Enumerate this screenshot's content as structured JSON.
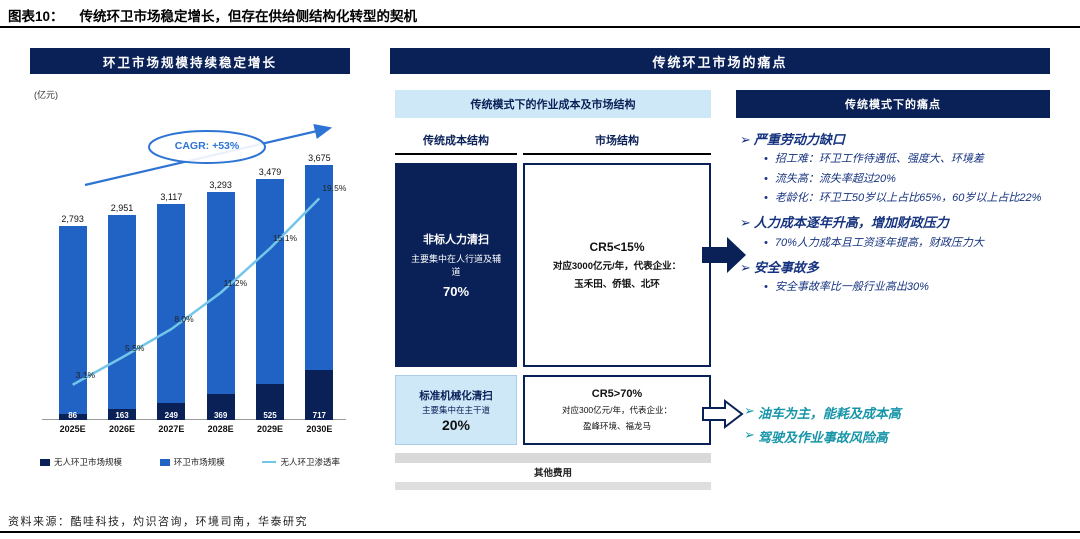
{
  "page": {
    "figure_label": "图表10：",
    "figure_title": "传统环卫市场稳定增长，但存在供给侧结构化转型的契机",
    "source": "资料来源：酷哇科技，灼识咨询，环境司南，华泰研究"
  },
  "colors": {
    "navy": "#0a2158",
    "bar_blue": "#2063c5",
    "line_blue": "#74c6e9",
    "light_blue_bg": "#cfe8f8",
    "trend_blue": "#2e74d4",
    "teal": "#1795a8",
    "gray_bar": "#d9d9d9",
    "text_navy": "#16337f"
  },
  "left_panel": {
    "header": "环卫市场规模持续稳定增长",
    "unit_label": "(亿元)",
    "cagr_label": "CAGR: +53%"
  },
  "chart_data": {
    "type": "bar",
    "categories": [
      "2025E",
      "2026E",
      "2027E",
      "2028E",
      "2029E",
      "2030E"
    ],
    "series": [
      {
        "name": "无人环卫市场规模",
        "type": "bar",
        "values": [
          86,
          163,
          249,
          369,
          525,
          717
        ],
        "color": "#0a2158"
      },
      {
        "name": "环卫市场规模",
        "type": "bar",
        "values": [
          2793,
          2951,
          3117,
          3293,
          3479,
          3675
        ],
        "color": "#2063c5"
      },
      {
        "name": "无人环卫渗透率",
        "type": "line",
        "unit": "%",
        "values": [
          3.1,
          5.5,
          8.0,
          11.2,
          15.1,
          19.5
        ],
        "color": "#74c6e9"
      }
    ],
    "title": "环卫市场规模持续稳定增长",
    "ylabel": "(亿元)",
    "y_max": 3675,
    "pct_axis_max": 22,
    "annotation": "CAGR: +53%",
    "legend_position": "bottom",
    "grid": false
  },
  "right_panel": {
    "header": "传统环卫市场的痛点",
    "cost_section": {
      "header": "传统模式下的作业成本及市场结构",
      "col1_header": "传统成本结构",
      "col2_header": "市场结构",
      "manual_box": {
        "title": "非标人力清扫",
        "subtitle": "主要集中在人行道及辅道",
        "share": "70%"
      },
      "manual_market": {
        "line1": "CR5<15%",
        "line2": "对应3000亿元/年，代表企业：",
        "line3": "玉禾田、侨银、北环"
      },
      "mech_box": {
        "title": "标准机械化清扫",
        "subtitle": "主要集中在主干道",
        "share": "20%"
      },
      "mech_market": {
        "line1": "CR5>70%",
        "line2": "对应300亿元/年，代表企业：",
        "line3": "盈峰环境、福龙马"
      },
      "other_label": "其他费用"
    },
    "pain_section": {
      "header": "传统模式下的痛点",
      "groups": [
        {
          "title": "严重劳动力缺口",
          "bullets": [
            "招工难：环卫工作待遇低、强度大、环境差",
            "流失高：流失率超过20%",
            "老龄化：环卫工50岁以上占比65%，60岁以上占比22%"
          ]
        },
        {
          "title": "人力成本逐年升高，增加财政压力",
          "bullets": [
            "70%人力成本且工资逐年提高，财政压力大"
          ]
        },
        {
          "title": "安全事故多",
          "bullets": [
            "安全事故率比一般行业高出30%"
          ]
        }
      ],
      "teal_points": [
        "油车为主，能耗及成本高",
        "驾驶及作业事故风险高"
      ]
    }
  }
}
